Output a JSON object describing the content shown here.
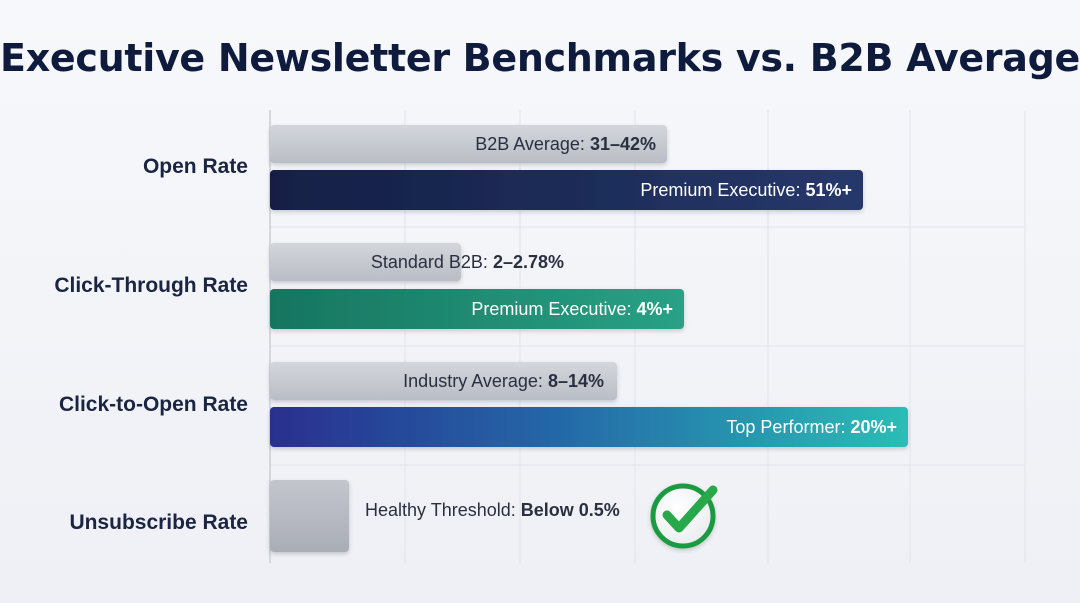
{
  "title": "Executive Newsletter Benchmarks vs. B2B Average",
  "chart_data": {
    "type": "bar",
    "orientation": "horizontal",
    "title": "Executive Newsletter Benchmarks vs. B2B Average",
    "grid": true,
    "categories": [
      "Open Rate",
      "Click-Through Rate",
      "Click-to-Open Rate",
      "Unsubscribe Rate"
    ],
    "bars": [
      {
        "category": "Open Rate",
        "kind": "baseline",
        "label": "B2B Average: ",
        "value_text": "31–42%",
        "value": 42,
        "color": "#c4c8cf"
      },
      {
        "category": "Open Rate",
        "kind": "premium",
        "label": "Premium Executive: ",
        "value_text": "51%+",
        "value": 51,
        "color": "#1d2d5a"
      },
      {
        "category": "Click-Through Rate",
        "kind": "baseline",
        "label": "Standard B2B: ",
        "value_text": "2–2.78%",
        "value": 2.78,
        "color": "#c4c8cf"
      },
      {
        "category": "Click-Through Rate",
        "kind": "premium",
        "label": "Premium Executive: ",
        "value_text": "4%+",
        "value": 4,
        "color": "#1f8a72"
      },
      {
        "category": "Click-to-Open Rate",
        "kind": "baseline",
        "label": "Industry Average: ",
        "value_text": "8–14%",
        "value": 14,
        "color": "#c4c8cf"
      },
      {
        "category": "Click-to-Open Rate",
        "kind": "premium",
        "label": "Top Performer: ",
        "value_text": "20%+",
        "value": 20,
        "color": "#2a3b93"
      },
      {
        "category": "Unsubscribe Rate",
        "kind": "baseline",
        "label": "Healthy Threshold: ",
        "value_text": "Below 0.5%",
        "value": 0.5,
        "color": "#b8bcc4"
      }
    ],
    "check_icon": "check-circle-icon"
  }
}
